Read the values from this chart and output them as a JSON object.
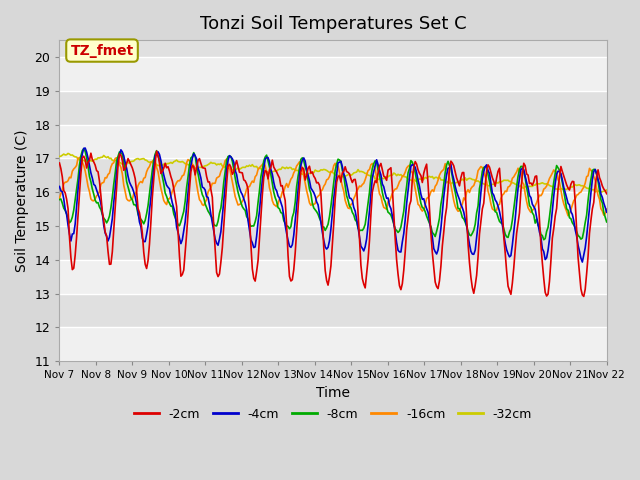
{
  "title": "Tonzi Soil Temperatures Set C",
  "xlabel": "Time",
  "ylabel": "Soil Temperature (C)",
  "ylim": [
    11.0,
    20.5
  ],
  "yticks": [
    11.0,
    12.0,
    13.0,
    14.0,
    15.0,
    16.0,
    17.0,
    18.0,
    19.0,
    20.0
  ],
  "annotation": "TZ_fmet",
  "annotation_color": "#cc0000",
  "annotation_bg": "#ffffcc",
  "annotation_border": "#999900",
  "series_colors": {
    "-2cm": "#dd0000",
    "-4cm": "#0000cc",
    "-8cm": "#00aa00",
    "-16cm": "#ff8800",
    "-32cm": "#cccc00"
  },
  "x_labels": [
    "Nov 7",
    "Nov 8",
    "Nov 9",
    "Nov 10",
    "Nov 11",
    "Nov 12",
    "Nov 13",
    "Nov 14",
    "Nov 15",
    "Nov 16",
    "Nov 17",
    "Nov 18",
    "Nov 19",
    "Nov 20",
    "Nov 21",
    "Nov 22"
  ],
  "n_points": 384,
  "legend_labels": [
    "-2cm",
    "-4cm",
    "-8cm",
    "-16cm",
    "-32cm"
  ]
}
